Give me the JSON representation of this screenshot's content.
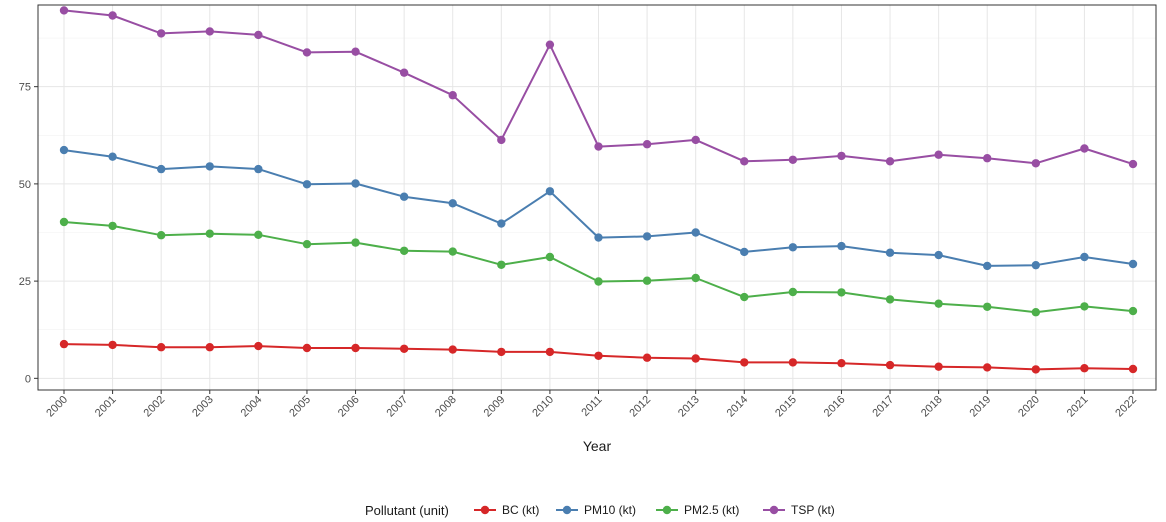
{
  "chart_data": {
    "type": "line",
    "xlabel": "Year",
    "ylabel": "",
    "ylim": [
      -3,
      96
    ],
    "yticks": [
      0,
      25,
      50,
      75
    ],
    "x": [
      "2000",
      "2001",
      "2002",
      "2003",
      "2004",
      "2005",
      "2006",
      "2007",
      "2008",
      "2009",
      "2010",
      "2011",
      "2012",
      "2013",
      "2014",
      "2015",
      "2016",
      "2017",
      "2018",
      "2019",
      "2020",
      "2021",
      "2022"
    ],
    "grid": true,
    "legend": {
      "title": "Pollutant (unit)",
      "placement": "bottom"
    },
    "series": [
      {
        "name": "BC (kt)",
        "color": "#d62728",
        "values": [
          8.8,
          8.6,
          8.0,
          8.0,
          8.3,
          7.8,
          7.8,
          7.6,
          7.4,
          6.8,
          6.8,
          5.8,
          5.3,
          5.1,
          4.1,
          4.1,
          3.9,
          3.4,
          3.0,
          2.8,
          2.3,
          2.6,
          2.4
        ]
      },
      {
        "name": "PM10 (kt)",
        "color": "#4a7eb0",
        "values": [
          58.7,
          57.0,
          53.8,
          54.5,
          53.8,
          49.9,
          50.1,
          46.7,
          45.0,
          39.8,
          48.1,
          36.2,
          36.5,
          37.5,
          32.5,
          33.7,
          34.0,
          32.3,
          31.7,
          28.9,
          29.1,
          31.2,
          29.4
        ]
      },
      {
        "name": "PM2.5 (kt)",
        "color": "#4daf4a",
        "values": [
          40.2,
          39.2,
          36.8,
          37.2,
          36.9,
          34.5,
          34.9,
          32.8,
          32.6,
          29.2,
          31.2,
          24.9,
          25.1,
          25.8,
          20.9,
          22.2,
          22.1,
          20.3,
          19.2,
          18.4,
          17.0,
          18.5,
          17.3
        ]
      },
      {
        "name": "TSP (kt)",
        "color": "#984ea3",
        "values": [
          94.6,
          93.3,
          88.7,
          89.2,
          88.3,
          83.8,
          84.0,
          78.6,
          72.8,
          61.3,
          85.8,
          59.6,
          60.2,
          61.3,
          55.8,
          56.2,
          57.2,
          55.8,
          57.5,
          56.6,
          55.3,
          59.1,
          55.1
        ]
      }
    ]
  }
}
